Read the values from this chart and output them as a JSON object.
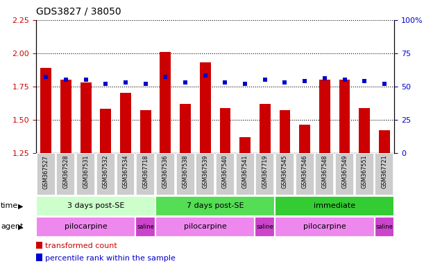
{
  "title": "GDS3827 / 38050",
  "samples": [
    "GSM367527",
    "GSM367528",
    "GSM367531",
    "GSM367532",
    "GSM367534",
    "GSM367718",
    "GSM367536",
    "GSM367538",
    "GSM367539",
    "GSM367540",
    "GSM367541",
    "GSM367719",
    "GSM367545",
    "GSM367546",
    "GSM367548",
    "GSM367549",
    "GSM367551",
    "GSM367721"
  ],
  "bar_values": [
    1.89,
    1.8,
    1.78,
    1.58,
    1.7,
    1.57,
    2.01,
    1.62,
    1.93,
    1.59,
    1.37,
    1.62,
    1.57,
    1.46,
    1.8,
    1.8,
    1.59,
    1.42
  ],
  "dot_values": [
    57,
    55,
    55,
    52,
    53,
    52,
    57,
    53,
    58,
    53,
    52,
    55,
    53,
    54,
    56,
    55,
    54,
    52
  ],
  "ylim_left": [
    1.25,
    2.25
  ],
  "ylim_right": [
    0,
    100
  ],
  "yticks_left": [
    1.25,
    1.5,
    1.75,
    2.0,
    2.25
  ],
  "yticks_right": [
    0,
    25,
    50,
    75,
    100
  ],
  "bar_color": "#cc0000",
  "dot_color": "#0000cc",
  "bar_bottom": 1.25,
  "time_groups": [
    {
      "label": "3 days post-SE",
      "start": 0,
      "end": 6,
      "color": "#ccffcc"
    },
    {
      "label": "7 days post-SE",
      "start": 6,
      "end": 12,
      "color": "#55dd55"
    },
    {
      "label": "immediate",
      "start": 12,
      "end": 18,
      "color": "#33cc33"
    }
  ],
  "agent_groups": [
    {
      "label": "pilocarpine",
      "start": 0,
      "end": 5,
      "color": "#ee88ee"
    },
    {
      "label": "saline",
      "start": 5,
      "end": 6,
      "color": "#cc44cc"
    },
    {
      "label": "pilocarpine",
      "start": 6,
      "end": 11,
      "color": "#ee88ee"
    },
    {
      "label": "saline",
      "start": 11,
      "end": 12,
      "color": "#cc44cc"
    },
    {
      "label": "pilocarpine",
      "start": 12,
      "end": 17,
      "color": "#ee88ee"
    },
    {
      "label": "saline",
      "start": 17,
      "end": 18,
      "color": "#cc44cc"
    }
  ],
  "bar_color_legend": "#cc0000",
  "dot_color_legend": "#0000cc",
  "tick_color_left": "#cc0000",
  "tick_color_right": "#0000cc",
  "sample_box_color": "#cccccc",
  "title_fontsize": 10,
  "bar_fontsize": 7,
  "annotation_fontsize": 8,
  "legend_fontsize": 8
}
